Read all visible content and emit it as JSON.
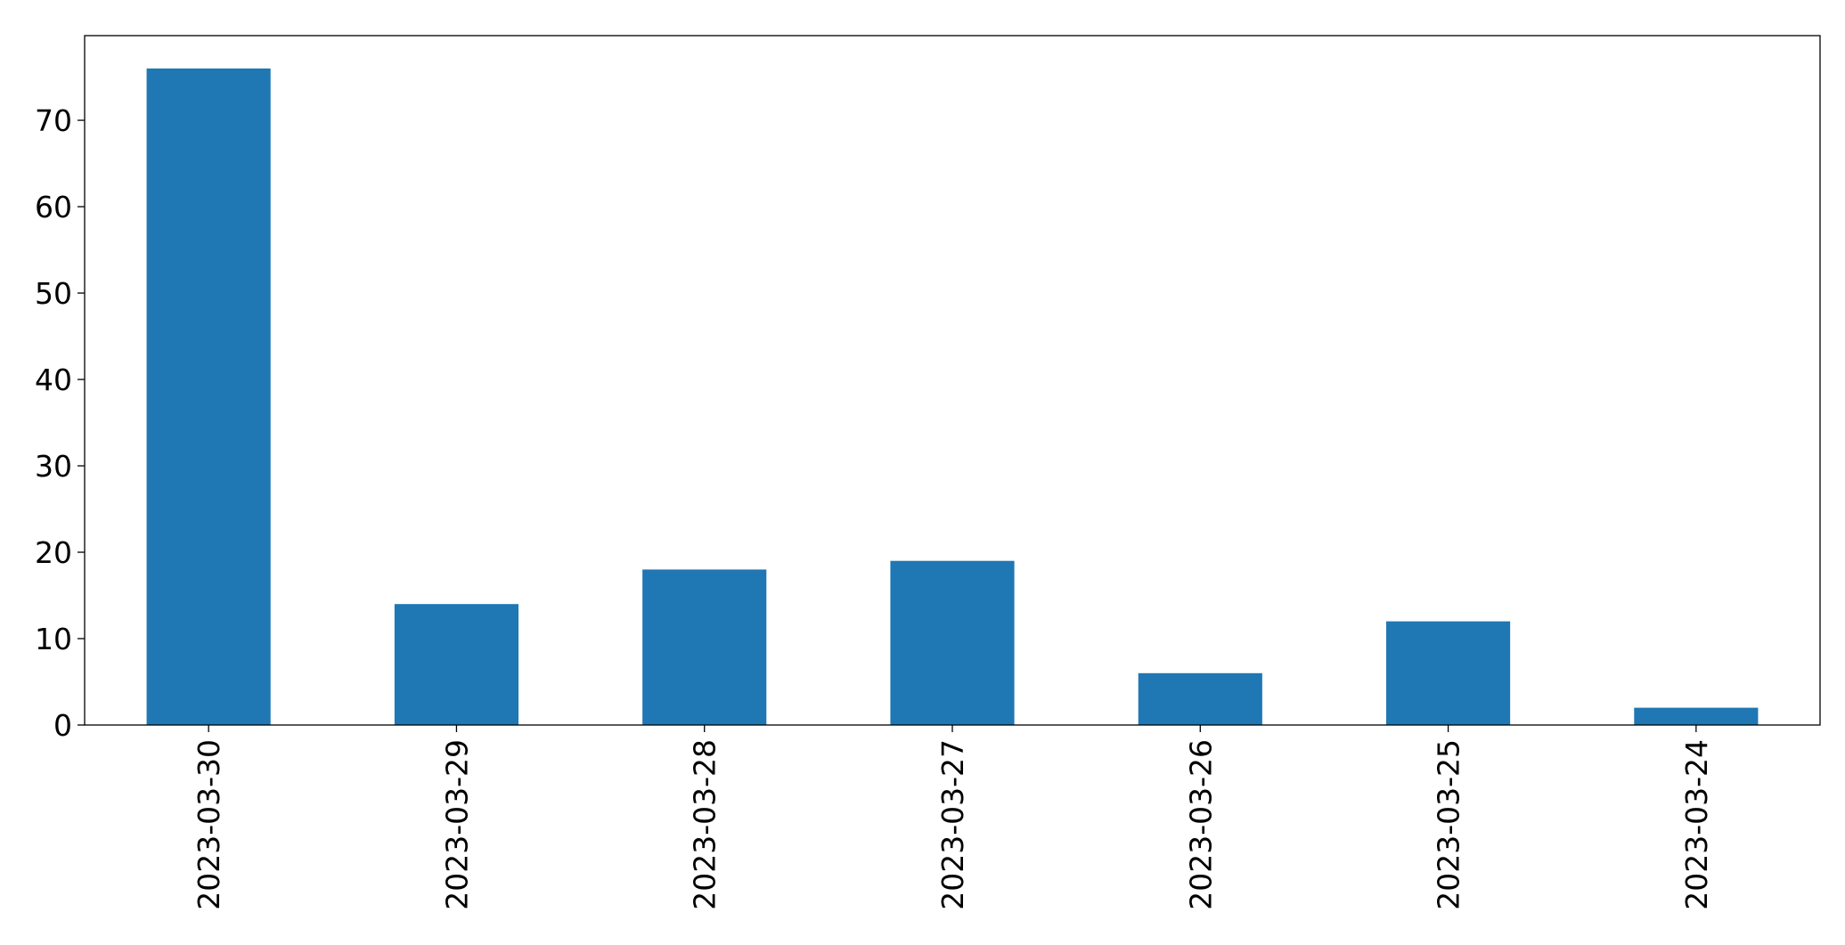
{
  "chart_data": {
    "type": "bar",
    "title": "",
    "xlabel": "",
    "ylabel": "",
    "categories": [
      "2023-03-30",
      "2023-03-29",
      "2023-03-28",
      "2023-03-27",
      "2023-03-26",
      "2023-03-25",
      "2023-03-24"
    ],
    "values": [
      76,
      14,
      18,
      19,
      6,
      12,
      2
    ],
    "ylim": [
      0,
      79.8
    ],
    "yticks": [
      0,
      10,
      20,
      30,
      40,
      50,
      60,
      70
    ],
    "grid": false,
    "legend": "none",
    "bar_color": "#1f77b4"
  }
}
